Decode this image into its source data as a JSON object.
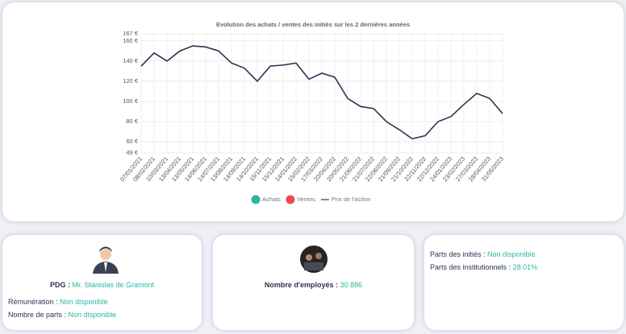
{
  "chart_data": {
    "type": "line",
    "title": "Evolution des achats / ventes des initiés sur les 2 dernières années",
    "categories": [
      "07/01/2021",
      "08/02/2021",
      "10/03/2021",
      "13/04/2021",
      "13/05/2021",
      "14/06/2021",
      "14/07/2021",
      "13/08/2021",
      "14/09/2021",
      "14/10/2021",
      "15/11/2021",
      "15/12/2021",
      "14/01/2022",
      "15/02/2022",
      "17/03/2022",
      "20/04/2022",
      "20/05/2022",
      "21/06/2022",
      "21/07/2022",
      "22/08/2022",
      "21/09/2022",
      "21/10/2022",
      "22/11/2022",
      "22/12/2022",
      "24/01/2023",
      "23/02/2023",
      "27/03/2023",
      "28/04/2023",
      "31/05/2023"
    ],
    "series": [
      {
        "name": "Achats",
        "color": "#2bb5a3",
        "values": [
          null,
          null,
          null,
          null,
          null,
          null,
          null,
          null,
          null,
          null,
          null,
          null,
          null,
          null,
          null,
          null,
          null,
          null,
          null,
          null,
          null,
          null,
          null,
          null,
          null,
          null,
          null,
          null,
          null
        ]
      },
      {
        "name": "Ventes",
        "color": "#f04a4a",
        "values": [
          null,
          null,
          null,
          null,
          null,
          null,
          null,
          null,
          null,
          null,
          null,
          null,
          null,
          null,
          null,
          null,
          null,
          null,
          null,
          null,
          null,
          null,
          null,
          null,
          null,
          null,
          null,
          null,
          null
        ]
      },
      {
        "name": "Prix de l'action",
        "color": "#2e3350",
        "values": [
          135,
          148,
          140,
          150,
          155,
          154,
          150,
          138,
          133,
          120,
          135,
          136,
          138,
          122,
          128,
          124,
          103,
          95,
          93,
          80,
          72,
          63,
          66,
          80,
          85,
          97,
          108,
          103,
          88
        ]
      }
    ],
    "ylim": [
      49,
      167
    ],
    "yticks": [
      {
        "value": 49,
        "label": "49 €"
      },
      {
        "value": 60,
        "label": "60 €"
      },
      {
        "value": 80,
        "label": "80 €"
      },
      {
        "value": 100,
        "label": "100 €"
      },
      {
        "value": 120,
        "label": "120 €"
      },
      {
        "value": 140,
        "label": "140 €"
      },
      {
        "value": 160,
        "label": "160 €"
      },
      {
        "value": 167,
        "label": "167 €"
      }
    ],
    "grid": true
  },
  "cards": [
    {
      "rows": [
        {
          "label": "PDG :",
          "value": "Mr. Stanislas de Gramont"
        },
        {
          "label": "Rémunération :",
          "value": "Non disponible"
        },
        {
          "label": "Nombre de parts :",
          "value": "Non disponible"
        }
      ]
    },
    {
      "rows": [
        {
          "label": "Nombre d'employés :",
          "value": "30 886"
        }
      ]
    },
    {
      "rows": [
        {
          "label": "Parts des initiés :",
          "value": "Non disponible"
        },
        {
          "label": "Parts des institutionnels :",
          "value": "28.01%"
        }
      ]
    }
  ]
}
